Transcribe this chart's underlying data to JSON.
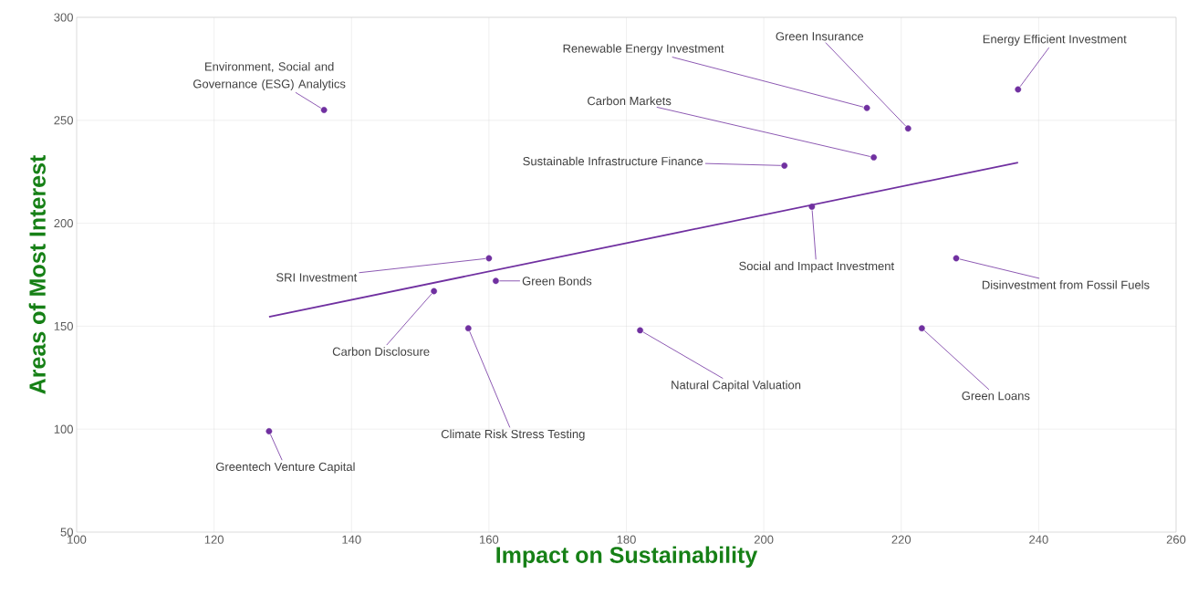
{
  "chart_data": {
    "type": "scatter",
    "xlabel": "Impact on Sustainability",
    "ylabel": "Areas of Most Interest",
    "xlim": [
      100,
      260
    ],
    "ylim": [
      50,
      300
    ],
    "xticks": [
      100,
      120,
      140,
      160,
      180,
      200,
      220,
      240,
      260
    ],
    "yticks": [
      50,
      100,
      150,
      200,
      250,
      300
    ],
    "grid": true,
    "x": [
      136,
      215,
      221,
      237,
      216,
      203,
      207,
      160,
      228,
      161,
      152,
      157,
      182,
      223,
      128
    ],
    "series": [
      {
        "color": "#7030a0",
        "marker": "circle",
        "values": [
          255,
          256,
          246,
          265,
          232,
          228,
          208,
          183,
          183,
          172,
          167,
          149,
          148,
          149,
          99
        ]
      },
      {
        "type": "line",
        "color": "#7030a0",
        "marker": "none",
        "line_style": "solid",
        "x": [
          128,
          237
        ],
        "values": [
          154.6,
          229.5
        ]
      }
    ],
    "annotations": [
      {
        "text": "Environment, Social and Governance (ESG) Analytics",
        "x": 136,
        "y": 255
      },
      {
        "text": "Renewable Energy Investment",
        "x": 215,
        "y": 256
      },
      {
        "text": "Green Insurance",
        "x": 221,
        "y": 246
      },
      {
        "text": "Energy Efficient Investment",
        "x": 237,
        "y": 265
      },
      {
        "text": "Carbon Markets",
        "x": 216,
        "y": 232
      },
      {
        "text": "Sustainable Infrastructure Finance",
        "x": 203,
        "y": 228
      },
      {
        "text": "Social and Impact Investment",
        "x": 207,
        "y": 208
      },
      {
        "text": "SRI Investment",
        "x": 160,
        "y": 183
      },
      {
        "text": "Disinvestment from Fossil Fuels",
        "x": 228,
        "y": 183
      },
      {
        "text": "Green Bonds",
        "x": 161,
        "y": 172
      },
      {
        "text": "Carbon Disclosure",
        "x": 152,
        "y": 167
      },
      {
        "text": "Climate Risk Stress Testing",
        "x": 157,
        "y": 149
      },
      {
        "text": "Natural Capital Valuation",
        "x": 182,
        "y": 148
      },
      {
        "text": "Green Loans",
        "x": 223,
        "y": 149
      },
      {
        "text": "Greentech Venture Capital",
        "x": 128,
        "y": 99
      }
    ]
  }
}
